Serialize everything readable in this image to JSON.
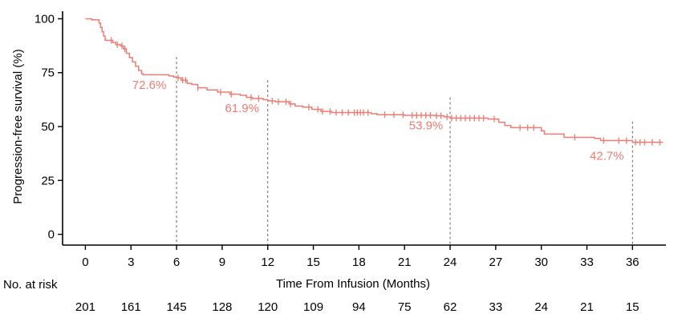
{
  "chart_data": {
    "type": "line",
    "title": "",
    "xlabel": "Time From Infusion (Months)",
    "ylabel": "Progression-free survival (%)",
    "xlim": [
      -1.5,
      38.2
    ],
    "ylim": [
      -5,
      105
    ],
    "x_ticks": [
      0,
      3,
      6,
      9,
      12,
      15,
      18,
      21,
      24,
      27,
      30,
      33,
      36
    ],
    "y_ticks": [
      0,
      25,
      50,
      75,
      100
    ],
    "grid": false,
    "legend": "none",
    "color": "#f07b72",
    "series": [
      {
        "name": "",
        "step_points": [
          [
            0,
            100
          ],
          [
            0.3,
            100
          ],
          [
            0.4,
            99.5
          ],
          [
            0.8,
            99.5
          ],
          [
            0.9,
            98
          ],
          [
            1,
            96
          ],
          [
            1.1,
            94
          ],
          [
            1.2,
            92
          ],
          [
            1.3,
            90
          ],
          [
            1.8,
            89
          ],
          [
            2,
            88
          ],
          [
            2.3,
            87.5
          ],
          [
            2.5,
            86
          ],
          [
            2.7,
            84
          ],
          [
            2.9,
            82
          ],
          [
            3.1,
            80
          ],
          [
            3.3,
            78
          ],
          [
            3.5,
            76
          ],
          [
            3.7,
            74.5
          ],
          [
            3.8,
            74
          ],
          [
            5.5,
            73.5
          ],
          [
            5.8,
            73
          ],
          [
            6,
            72.6
          ],
          [
            6.3,
            71.5
          ],
          [
            6.7,
            70
          ],
          [
            7,
            69.5
          ],
          [
            7.4,
            68
          ],
          [
            8,
            67
          ],
          [
            8.7,
            66
          ],
          [
            9.5,
            65
          ],
          [
            10.2,
            64.5
          ],
          [
            10.6,
            63.5
          ],
          [
            11,
            63
          ],
          [
            11.7,
            62.5
          ],
          [
            12,
            61.9
          ],
          [
            12.5,
            61.5
          ],
          [
            13.4,
            60.5
          ],
          [
            13.8,
            59.5
          ],
          [
            14.3,
            59
          ],
          [
            14.9,
            58
          ],
          [
            15.5,
            57
          ],
          [
            16.2,
            56.5
          ],
          [
            18.8,
            56
          ],
          [
            19.2,
            55.5
          ],
          [
            21,
            55.2
          ],
          [
            23,
            55
          ],
          [
            23.6,
            54.5
          ],
          [
            24,
            53.9
          ],
          [
            26.5,
            53.5
          ],
          [
            27.2,
            52
          ],
          [
            27.6,
            50.5
          ],
          [
            28,
            49.5
          ],
          [
            30,
            48
          ],
          [
            30.2,
            46.5
          ],
          [
            31.5,
            45
          ],
          [
            33.5,
            44.5
          ],
          [
            33.9,
            43.5
          ],
          [
            36,
            42.7
          ],
          [
            38,
            42.7
          ]
        ],
        "censor_times": [
          1.7,
          2.1,
          2.4,
          2.6,
          6.1,
          6.4,
          6.6,
          7.4,
          8.9,
          9.6,
          10.9,
          11.4,
          12.3,
          12.7,
          13.2,
          13.5,
          14.7,
          15.3,
          15.6,
          16.1,
          16.5,
          16.9,
          17.3,
          17.7,
          17.9,
          18.1,
          18.3,
          18.6,
          19.7,
          20.3,
          20.9,
          21.5,
          21.8,
          22.1,
          22.4,
          22.7,
          23.1,
          23.4,
          23.8,
          24.1,
          24.4,
          24.7,
          25.0,
          25.3,
          25.6,
          25.9,
          26.2,
          26.9,
          28.6,
          29.1,
          29.5,
          32.2,
          34.1,
          35.1,
          35.6,
          36.2,
          36.5,
          36.8,
          37.3,
          37.8
        ]
      }
    ],
    "milestones": [
      {
        "x": 6,
        "label": "72.6%"
      },
      {
        "x": 12,
        "label": "61.9%"
      },
      {
        "x": 24,
        "label": "53.9%"
      },
      {
        "x": 36,
        "label": "42.7%"
      }
    ],
    "at_risk": {
      "label": "No. at risk",
      "counts": [
        201,
        161,
        145,
        128,
        120,
        109,
        94,
        75,
        62,
        33,
        24,
        21,
        15
      ]
    }
  }
}
